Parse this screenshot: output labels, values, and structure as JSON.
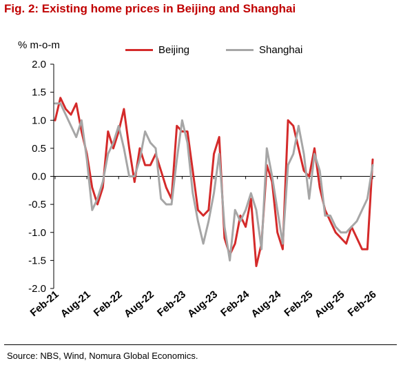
{
  "title": "Fig. 2: Existing home prices in Beijing and Shanghai",
  "source": "Source: NBS, Wind, Nomura Global Economics.",
  "chart_data": {
    "type": "line",
    "title": "Fig. 2: Existing home prices in Beijing and Shanghai",
    "ylabel": "% m-o-m",
    "xlabel": "",
    "ylim": [
      -2.0,
      2.0
    ],
    "yticks": [
      "2.0",
      "1.5",
      "1.0",
      "0.5",
      "0.0",
      "-0.5",
      "-1.0",
      "-1.5",
      "-2.0"
    ],
    "yticks_values": [
      2.0,
      1.5,
      1.0,
      0.5,
      0.0,
      -0.5,
      -1.0,
      -1.5,
      -2.0
    ],
    "x_tick_labels": [
      "Feb-21",
      "Aug-21",
      "Feb-22",
      "Aug-22",
      "Feb-23",
      "Aug-23",
      "Feb-24",
      "Aug-24",
      "Feb-25",
      "Aug-25",
      "Feb-26"
    ],
    "x": [
      "Feb-21",
      "Mar-21",
      "Apr-21",
      "May-21",
      "Jun-21",
      "Jul-21",
      "Aug-21",
      "Sep-21",
      "Oct-21",
      "Nov-21",
      "Dec-21",
      "Jan-22",
      "Feb-22",
      "Mar-22",
      "Apr-22",
      "May-22",
      "Jun-22",
      "Jul-22",
      "Aug-22",
      "Sep-22",
      "Oct-22",
      "Nov-22",
      "Dec-22",
      "Jan-23",
      "Feb-23",
      "Mar-23",
      "Apr-23",
      "May-23",
      "Jun-23",
      "Jul-23",
      "Aug-23",
      "Sep-23",
      "Oct-23",
      "Nov-23",
      "Dec-23",
      "Jan-24",
      "Feb-24",
      "Mar-24",
      "Apr-24",
      "May-24",
      "Jun-24",
      "Jul-24",
      "Aug-24",
      "Sep-24",
      "Oct-24",
      "Nov-24",
      "Dec-24",
      "Jan-25",
      "Feb-25",
      "Mar-25",
      "Apr-25",
      "May-25",
      "Jun-25",
      "Jul-25",
      "Aug-25",
      "Sep-25",
      "Oct-25",
      "Nov-25",
      "Dec-25",
      "Jan-26",
      "Feb-26"
    ],
    "series": [
      {
        "name": "Beijing",
        "color": "#d42a2a",
        "values": [
          1.0,
          1.4,
          1.2,
          1.1,
          1.3,
          0.8,
          0.4,
          -0.2,
          -0.5,
          -0.2,
          0.8,
          0.5,
          0.8,
          1.2,
          0.5,
          -0.1,
          0.5,
          0.2,
          0.2,
          0.4,
          0.1,
          -0.2,
          -0.4,
          0.9,
          0.8,
          0.8,
          0.1,
          -0.6,
          -0.7,
          -0.6,
          0.4,
          0.7,
          -1.1,
          -1.4,
          -1.2,
          -0.7,
          -0.9,
          -0.4,
          -1.6,
          -1.2,
          0.2,
          -0.1,
          -1.0,
          -1.3,
          1.0,
          0.9,
          0.5,
          0.1,
          0.0,
          0.5,
          -0.2,
          -0.6,
          -0.8,
          -1.0,
          -1.1,
          -1.2,
          -0.9,
          -1.1,
          -1.3,
          -1.3,
          0.3
        ]
      },
      {
        "name": "Shanghai",
        "color": "#a6a6a6",
        "values": [
          1.3,
          1.3,
          1.1,
          0.9,
          0.7,
          1.0,
          0.3,
          -0.6,
          -0.4,
          -0.1,
          0.4,
          0.6,
          0.9,
          0.5,
          0.0,
          0.0,
          0.3,
          0.8,
          0.6,
          0.5,
          -0.4,
          -0.5,
          -0.5,
          0.3,
          1.0,
          0.6,
          -0.3,
          -0.8,
          -1.2,
          -0.8,
          -0.3,
          0.4,
          -0.9,
          -1.5,
          -0.6,
          -0.8,
          -0.6,
          -0.3,
          -0.6,
          -1.3,
          0.5,
          0.0,
          -0.6,
          -1.2,
          0.2,
          0.4,
          0.9,
          0.4,
          -0.4,
          0.4,
          0.1,
          -0.7,
          -0.7,
          -0.9,
          -1.0,
          -1.0,
          -0.9,
          -0.8,
          -0.6,
          -0.4,
          0.2
        ]
      }
    ],
    "legend": "top",
    "grid": false
  }
}
